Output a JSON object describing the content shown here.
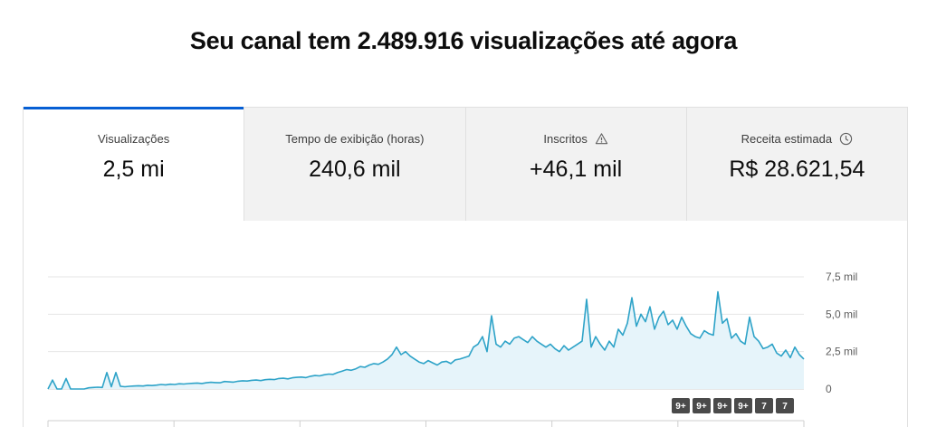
{
  "headline": "Seu canal tem 2.489.916 visualizações até agora",
  "tabs": [
    {
      "label": "Visualizações",
      "value": "2,5 mi",
      "active": true,
      "icon": ""
    },
    {
      "label": "Tempo de exibição (horas)",
      "value": "240,6 mil",
      "active": false,
      "icon": ""
    },
    {
      "label": "Inscritos",
      "value": "+46,1 mil",
      "active": false,
      "icon": "warning-icon"
    },
    {
      "label": "Receita estimada",
      "value": "R$ 28.621,54",
      "active": false,
      "icon": "clock-icon"
    }
  ],
  "colors": {
    "accent": "#065fd4",
    "line": "#2ea3c8",
    "fill": "#e6f4fa",
    "marker": "#4a4a4a"
  },
  "markers": [
    "9+",
    "9+",
    "9+",
    "9+",
    "7",
    "7"
  ],
  "chart_data": {
    "type": "area",
    "title": "",
    "xlabel": "",
    "ylabel": "",
    "ylim": [
      0,
      7500
    ],
    "y_ticks": [
      "0",
      "2,5 mil",
      "5,0 mil",
      "7,5 mil"
    ],
    "y_tick_values": [
      0,
      2500,
      5000,
      7500
    ],
    "grid": true,
    "series": [
      {
        "values": [
          0,
          600,
          0,
          0,
          700,
          0,
          0,
          0,
          0,
          80,
          100,
          120,
          100,
          1100,
          150,
          1100,
          180,
          150,
          180,
          200,
          220,
          200,
          250,
          230,
          260,
          300,
          280,
          320,
          300,
          350,
          330,
          360,
          380,
          400,
          370,
          420,
          450,
          430,
          420,
          500,
          480,
          460,
          520,
          550,
          530,
          580,
          600,
          560,
          620,
          650,
          630,
          700,
          720,
          680,
          750,
          780,
          800,
          760,
          850,
          900,
          880,
          950,
          1000,
          980,
          1100,
          1200,
          1300,
          1250,
          1350,
          1500,
          1450,
          1600,
          1700,
          1650,
          1800,
          2000,
          2300,
          2800,
          2300,
          2500,
          2200,
          2000,
          1800,
          1700,
          1900,
          1750,
          1600,
          1800,
          1850,
          1700,
          1950,
          2000,
          2100,
          2200,
          2800,
          3000,
          3500,
          2500,
          4900,
          3000,
          2800,
          3200,
          3000,
          3400,
          3500,
          3300,
          3100,
          3500,
          3200,
          3000,
          2800,
          3000,
          2700,
          2500,
          2900,
          2600,
          2800,
          3000,
          3200,
          6000,
          2800,
          3500,
          3000,
          2600,
          3200,
          2800,
          4000,
          3600,
          4400,
          6100,
          4200,
          5000,
          4500,
          5500,
          4000,
          4800,
          5200,
          4300,
          4600,
          4000,
          4800,
          4200,
          3700,
          3500,
          3400,
          3900,
          3700,
          3600,
          6500,
          4400,
          4700,
          3400,
          3700,
          3200,
          3000,
          4800,
          3500,
          3200,
          2700,
          2800,
          3000,
          2400,
          2200,
          2600,
          2100,
          2800,
          2300,
          2000
        ]
      }
    ]
  }
}
